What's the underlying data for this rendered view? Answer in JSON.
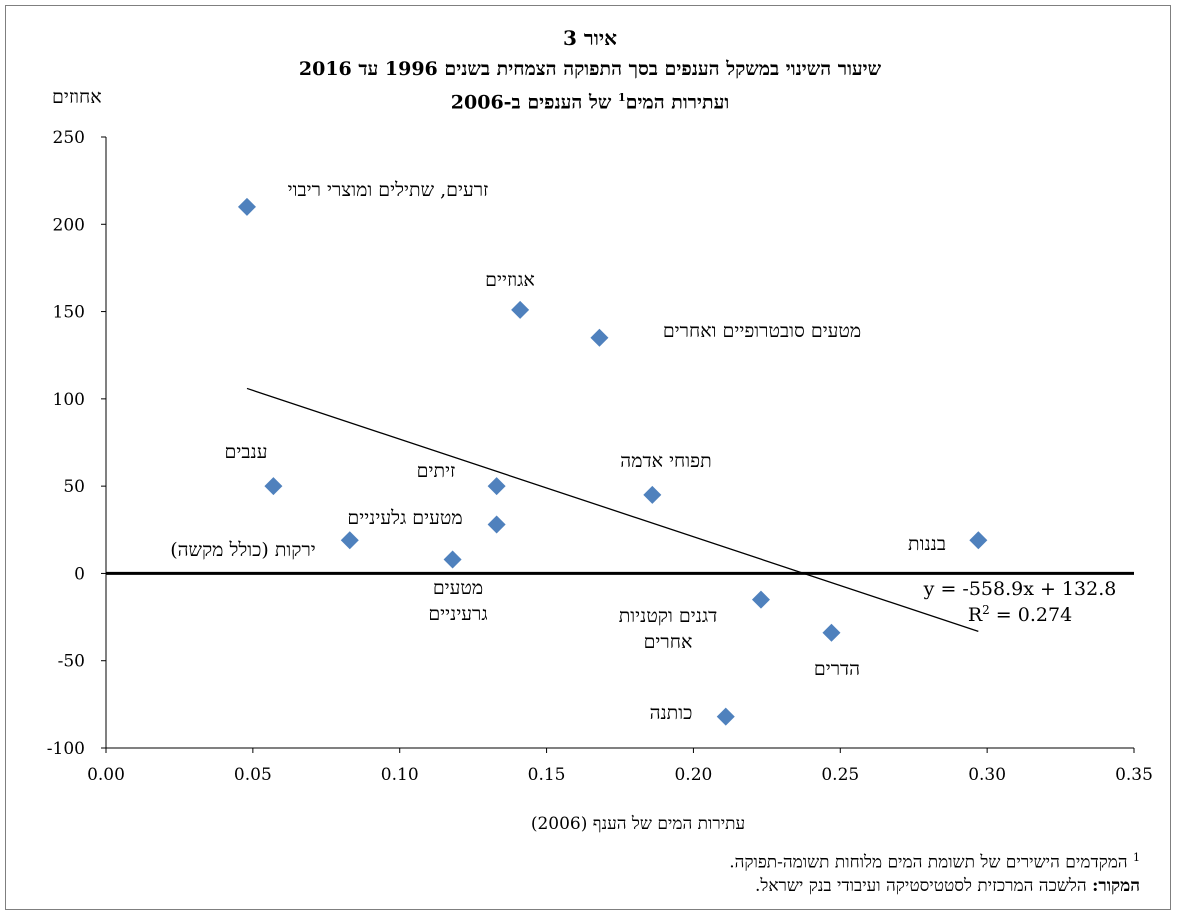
{
  "figure_label": "איור 3",
  "title_line1": "שיעור השינוי במשקל הענפים בסך התפוקה הצמחית בשנים 1996 עד 2016",
  "title_line2_pre": "ועתירות המים",
  "title_line2_sup": "1",
  "title_line2_post": " של הענפים ב-2006",
  "footnote": {
    "marker": "1",
    "text": " המקדמים הישירים של תשומת המים מלוחות תשומה-תפוקה.",
    "source_label": "המקור:",
    "source_text": " הלשכה המרכזית לסטטיסטיקה ועיבודי בנק ישראל."
  },
  "chart_data": {
    "type": "scatter",
    "title": "שיעור השינוי במשקל הענפים בסך התפוקה הצמחית בשנים 1996 עד 2016 ועתירות המים של הענפים ב-2006",
    "xlabel": "עתירות המים של הענף (2006)",
    "ylabel": "אחוזים",
    "xlim": [
      0,
      0.35
    ],
    "ylim": [
      -100,
      250
    ],
    "xticks": [
      "0.00",
      "0.05",
      "0.10",
      "0.15",
      "0.20",
      "0.25",
      "0.30",
      "0.35"
    ],
    "yticks": [
      "250",
      "200",
      "150",
      "100",
      "50",
      "0",
      "-50",
      "-100"
    ],
    "grid": false,
    "point_color": "#4f81bd",
    "points": [
      {
        "name": "זרעים, שתילים ומוצרי ריבוי",
        "lines": [
          "זרעים, שתילים ומוצרי ריבוי"
        ],
        "x": 0.048,
        "y": 210
      },
      {
        "name": "אגוזיים",
        "lines": [
          "אגוזיים"
        ],
        "x": 0.141,
        "y": 151
      },
      {
        "name": "מטעים סובטרופיים ואחרים",
        "lines": [
          "מטעים סובטרופיים ואחרים"
        ],
        "x": 0.168,
        "y": 135
      },
      {
        "name": "ענבים",
        "lines": [
          "ענבים"
        ],
        "x": 0.057,
        "y": 50
      },
      {
        "name": "זיתים",
        "lines": [
          "זיתים"
        ],
        "x": 0.133,
        "y": 50
      },
      {
        "name": "תפוחי אדמה",
        "lines": [
          "תפוחי אדמה"
        ],
        "x": 0.186,
        "y": 45
      },
      {
        "name": "מטעים גלעיניים",
        "lines": [
          "מטעים גלעיניים"
        ],
        "x": 0.133,
        "y": 28
      },
      {
        "name": "ירקות (כולל מקשה)",
        "lines": [
          "ירקות (כולל מקשה)"
        ],
        "x": 0.083,
        "y": 19
      },
      {
        "name": "מטעים גרעיניים",
        "lines": [
          "מטעים",
          "גרעיניים"
        ],
        "x": 0.118,
        "y": 8
      },
      {
        "name": "בננות",
        "lines": [
          "בננות"
        ],
        "x": 0.297,
        "y": 19
      },
      {
        "name": "דגנים וקטניות אחרים",
        "lines": [
          "דגנים וקטניות",
          "אחרים"
        ],
        "x": 0.223,
        "y": -15
      },
      {
        "name": "הדרים",
        "lines": [
          "הדרים"
        ],
        "x": 0.247,
        "y": -34
      },
      {
        "name": "כותנה",
        "lines": [
          "כותנה"
        ],
        "x": 0.211,
        "y": -82
      }
    ],
    "trendline": {
      "slope": -558.9,
      "intercept": 132.8,
      "x_range": [
        0.048,
        0.297
      ],
      "equation": "y = -558.9x + 132.8",
      "r2_label": "R",
      "r2_sup": "2",
      "r2_value": " = 0.274"
    }
  }
}
